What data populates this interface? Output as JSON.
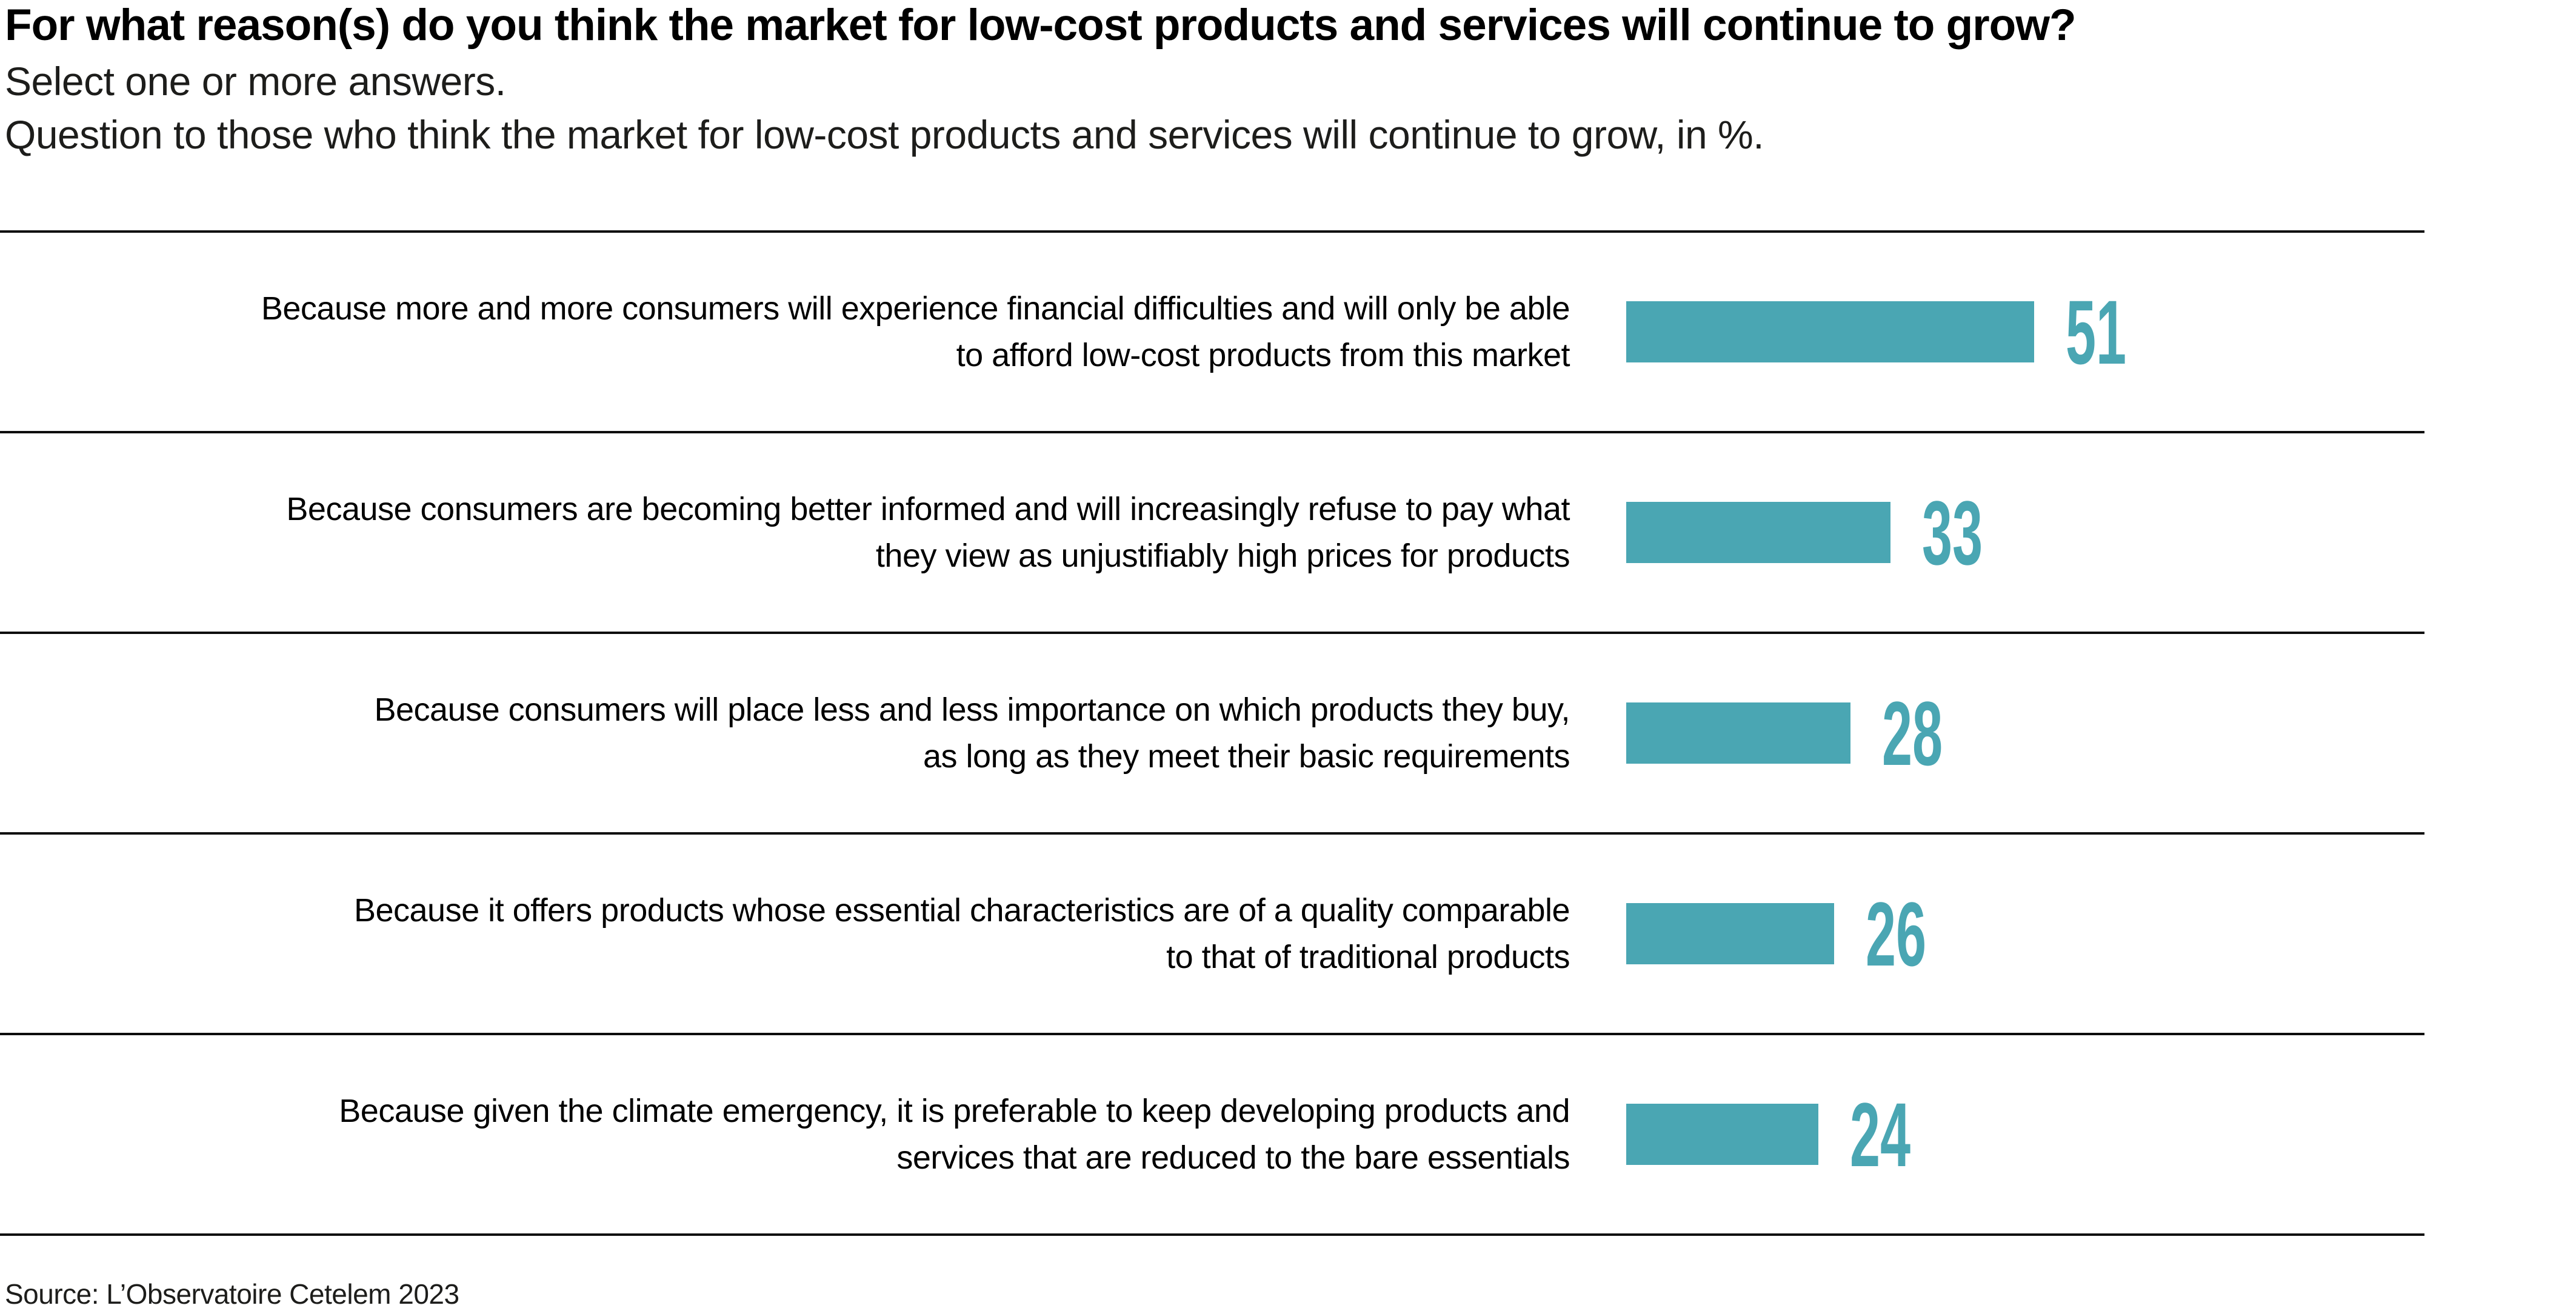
{
  "header": {
    "title": "For what reason(s) do you think the market for low-cost products and services will continue to grow?",
    "subtitle1": "Select one or more answers.",
    "subtitle2": "Question to those who think the market for low-cost products and services will continue to grow, in %."
  },
  "rows": [
    {
      "label_line1": "Because more and more consumers will experience financial difficulties and will only be able",
      "label_line2": "to afford low-cost products from this market"
    },
    {
      "label_line1": "Because consumers are becoming better informed and will increasingly refuse to pay what",
      "label_line2": "they view as unjustifiably high prices for products"
    },
    {
      "label_line1": "Because consumers will place less and less importance on which products they buy,",
      "label_line2": "as long as they meet their basic requirements"
    },
    {
      "label_line1": "Because it offers products whose essential characteristics are of a quality comparable",
      "label_line2": "to that of traditional products"
    },
    {
      "label_line1": "Because given the climate emergency, it is preferable to keep developing products and",
      "label_line2": "services that are reduced to the bare essentials"
    }
  ],
  "chart_data": {
    "type": "bar",
    "orientation": "horizontal",
    "title": "For what reason(s) do you think the market for low-cost products and services will continue to grow?",
    "subtitle": "Select one or more answers.",
    "note": "Question to those who think the market for low-cost products and services will continue to grow, in %.",
    "unit": "%",
    "categories": [
      "Because more and more consumers will experience financial difficulties and will only be able to afford low-cost products from this market",
      "Because consumers are becoming better informed and will increasingly refuse to pay what they view as unjustifiably high prices for products",
      "Because consumers will place less and less importance on which products they buy, as long as they meet their basic requirements",
      "Because it offers products whose essential characteristics are of a quality comparable to that of traditional products",
      "Because given the climate emergency, it is preferable to keep developing products and services that are reduced to the bare essentials"
    ],
    "values": [
      51,
      33,
      28,
      26,
      24
    ],
    "value_labels_shown": true,
    "grid": false,
    "legend": "none",
    "bar_color": "#4AA6B3",
    "source": "Source: L’Observatoire Cetelem 2023"
  },
  "colors": {
    "bar": "#4AA6B3",
    "value_text": "#4AA6B3",
    "rule": "#0d0d0d",
    "title": "#000000",
    "subtitle": "#1d1d1b",
    "label": "#000000",
    "background": "#ffffff"
  },
  "footer": {
    "source": "Source: L’Observatoire Cetelem 2023"
  }
}
